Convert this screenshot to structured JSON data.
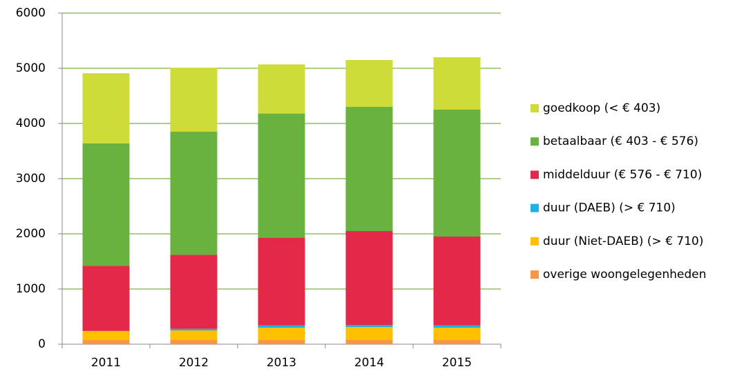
{
  "chart_data": {
    "type": "stacked_bar",
    "categories": [
      "2011",
      "2012",
      "2013",
      "2014",
      "2015"
    ],
    "series": [
      {
        "name": "overige woongelegenheden",
        "color": "#f79646",
        "values": [
          80,
          80,
          80,
          80,
          80
        ]
      },
      {
        "name": "duur (Niet-DAEB) (> € 710)",
        "color": "#ffc000",
        "values": [
          160,
          170,
          220,
          230,
          220
        ]
      },
      {
        "name": "duur (DAEB) (> € 710)",
        "color": "#1fb0e6",
        "values": [
          0,
          30,
          40,
          40,
          40
        ]
      },
      {
        "name": "middelduur (€ 576 - € 710)",
        "color": "#e4284a",
        "values": [
          1180,
          1340,
          1590,
          1700,
          1610
        ]
      },
      {
        "name": "betaalbaar (€ 403 - € 576)",
        "color": "#6ab23f",
        "values": [
          2220,
          2230,
          2250,
          2250,
          2300
        ]
      },
      {
        "name": "goedkoop (< € 403)",
        "color": "#cddc39",
        "values": [
          1270,
          1160,
          890,
          850,
          950
        ]
      }
    ],
    "ylim": [
      0,
      6000
    ],
    "yticks": [
      0,
      1000,
      2000,
      3000,
      4000,
      5000,
      6000
    ],
    "grid": true
  }
}
